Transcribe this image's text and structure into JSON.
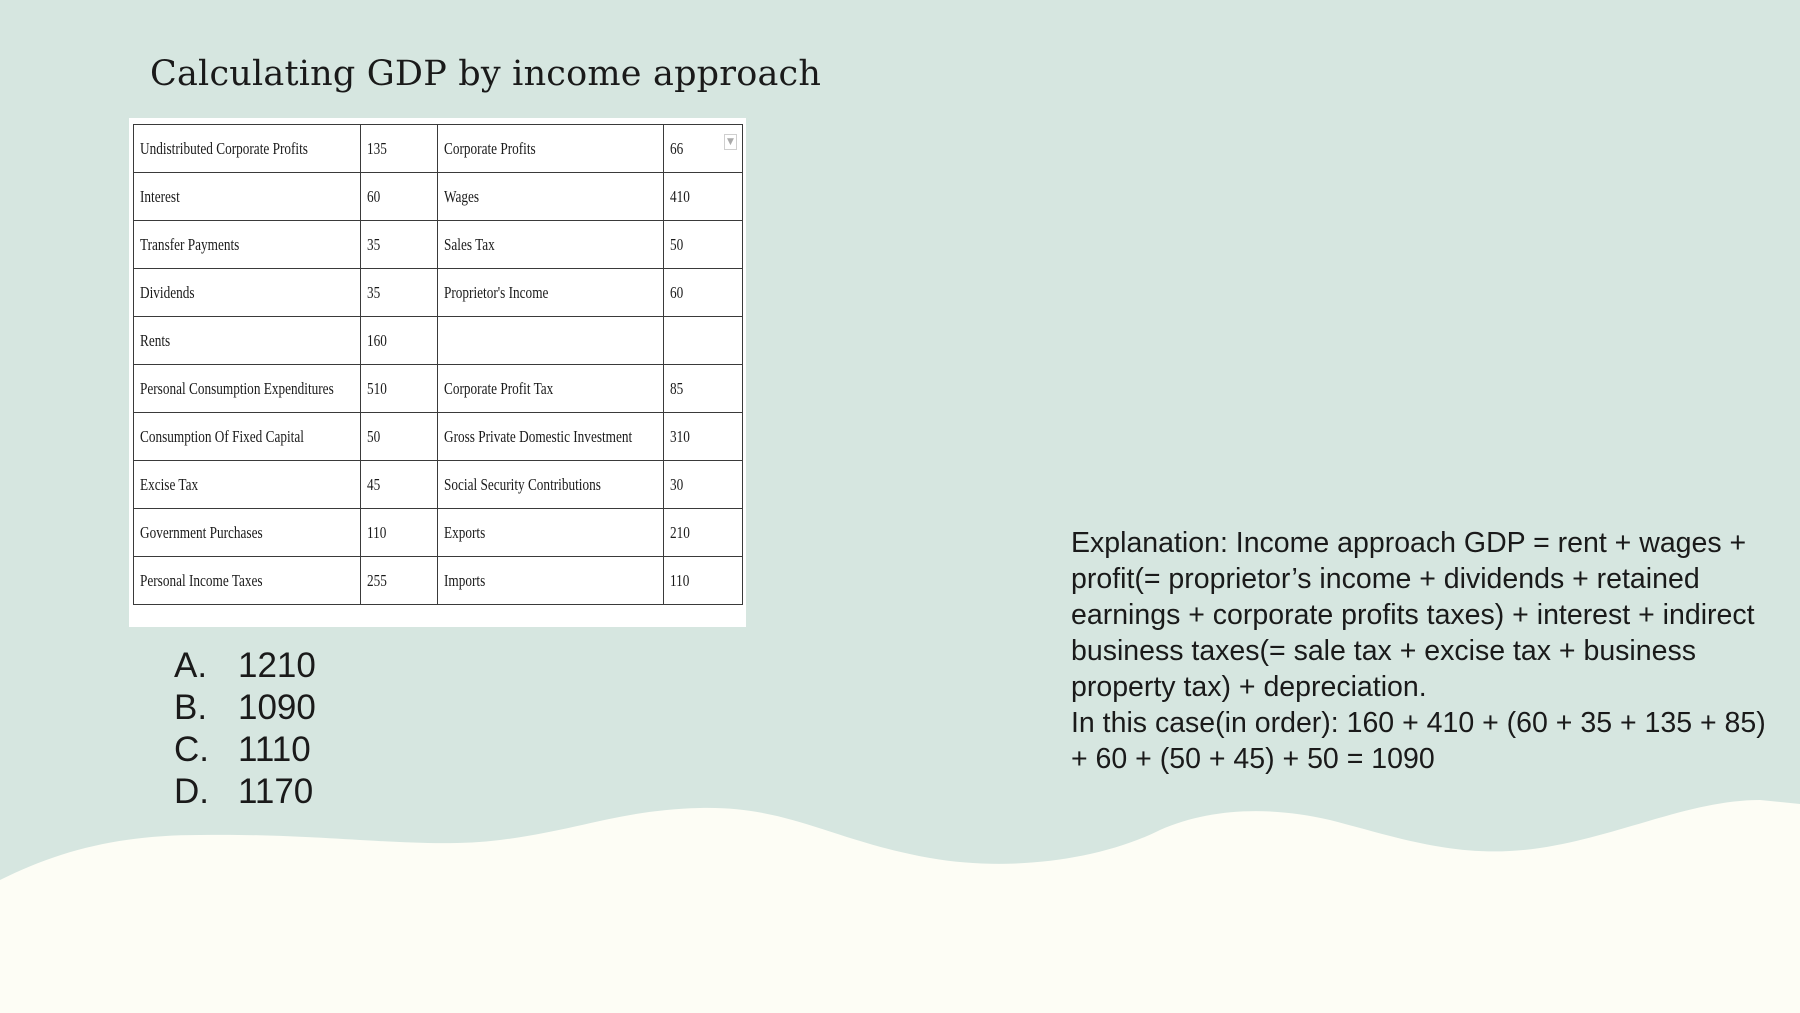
{
  "slide": {
    "title": "Calculating GDP by income approach",
    "background_color": "#d6e6e0",
    "wave_color": "#fdfdf5"
  },
  "table": {
    "rows": [
      [
        "Undistributed Corporate Profits",
        "135",
        "Corporate Profits",
        "66"
      ],
      [
        "Interest",
        "60",
        "Wages",
        "410"
      ],
      [
        "Transfer Payments",
        "35",
        "Sales Tax",
        "50"
      ],
      [
        "Dividends",
        "35",
        "Proprietor's Income",
        "60"
      ],
      [
        "Rents",
        "160",
        "",
        ""
      ],
      [
        "Personal Consumption Expenditures",
        "510",
        "Corporate Profit Tax",
        "85"
      ],
      [
        "Consumption Of Fixed Capital",
        "50",
        "Gross Private Domestic Investment",
        "310"
      ],
      [
        "Excise Tax",
        "45",
        "Social Security Contributions",
        "30"
      ],
      [
        "Government Purchases",
        "110",
        "Exports",
        "210"
      ],
      [
        "Personal Income Taxes",
        "255",
        "Imports",
        "110"
      ]
    ],
    "corner_icon": "dropdown-arrow-icon"
  },
  "options": [
    {
      "letter": "A.",
      "value": "1210"
    },
    {
      "letter": "B.",
      "value": "1090"
    },
    {
      "letter": "C.",
      "value": "1110"
    },
    {
      "letter": "D.",
      "value": "1170"
    }
  ],
  "explanation": {
    "paragraph1": "Explanation: Income approach GDP = rent + wages + profit(= proprietor’s income + dividends + retained earnings + corporate profits taxes)  + interest + indirect business taxes(= sale tax + excise tax + business property tax) + depreciation.",
    "paragraph2": "In this case(in order): 160 + 410 + (60 + 35 + 135 + 85) + 60 + (50 + 45) + 50 = 1090"
  }
}
